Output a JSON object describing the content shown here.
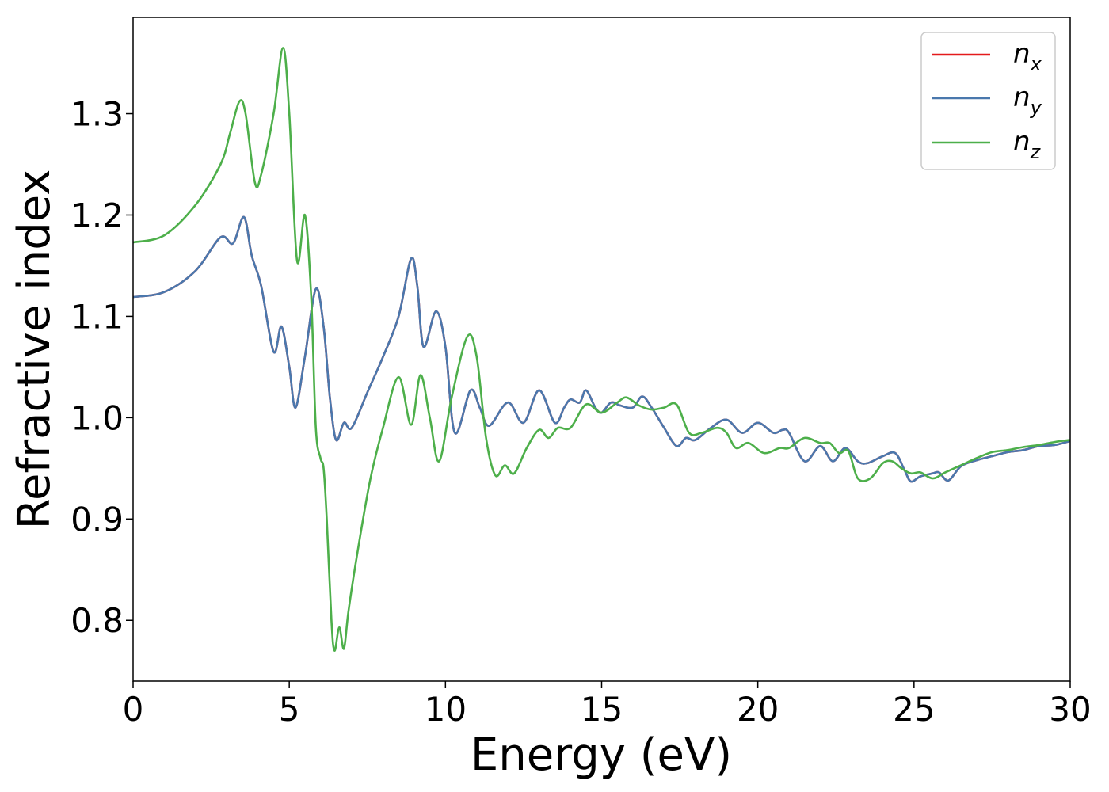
{
  "chart_data": {
    "type": "line",
    "xlabel": "Energy (eV)",
    "ylabel": "Refractive index",
    "xlim": [
      0,
      30
    ],
    "ylim": [
      0.74,
      1.395
    ],
    "xticks": [
      0,
      5,
      10,
      15,
      20,
      25,
      30
    ],
    "yticks": [
      0.8,
      0.9,
      1.0,
      1.1,
      1.2,
      1.3
    ],
    "xtick_labels": [
      "0",
      "5",
      "10",
      "15",
      "20",
      "25",
      "30"
    ],
    "ytick_labels": [
      "0.8",
      "0.9",
      "1.0",
      "1.1",
      "1.2",
      "1.3"
    ],
    "grid": false,
    "legend_position": "top-right",
    "series": [
      {
        "name": "n",
        "sub": "x",
        "color": "#e41a1c",
        "points": [
          [
            0,
            1.119
          ],
          [
            1,
            1.124
          ],
          [
            2,
            1.145
          ],
          [
            2.8,
            1.178
          ],
          [
            3.2,
            1.172
          ],
          [
            3.55,
            1.198
          ],
          [
            3.8,
            1.16
          ],
          [
            4.1,
            1.13
          ],
          [
            4.5,
            1.065
          ],
          [
            4.75,
            1.09
          ],
          [
            5.0,
            1.05
          ],
          [
            5.2,
            1.01
          ],
          [
            5.5,
            1.06
          ],
          [
            5.85,
            1.127
          ],
          [
            6.1,
            1.09
          ],
          [
            6.3,
            1.02
          ],
          [
            6.5,
            0.978
          ],
          [
            6.75,
            0.995
          ],
          [
            7.0,
            0.99
          ],
          [
            7.5,
            1.025
          ],
          [
            8.0,
            1.06
          ],
          [
            8.5,
            1.1
          ],
          [
            8.9,
            1.157
          ],
          [
            9.1,
            1.13
          ],
          [
            9.3,
            1.07
          ],
          [
            9.7,
            1.105
          ],
          [
            10.0,
            1.07
          ],
          [
            10.3,
            0.985
          ],
          [
            10.8,
            1.027
          ],
          [
            11.1,
            1.01
          ],
          [
            11.4,
            0.992
          ],
          [
            12.0,
            1.015
          ],
          [
            12.5,
            0.995
          ],
          [
            13.0,
            1.027
          ],
          [
            13.5,
            0.995
          ],
          [
            13.8,
            1.01
          ],
          [
            14.0,
            1.018
          ],
          [
            14.3,
            1.015
          ],
          [
            14.5,
            1.027
          ],
          [
            14.8,
            1.01
          ],
          [
            15.0,
            1.005
          ],
          [
            15.3,
            1.015
          ],
          [
            15.6,
            1.012
          ],
          [
            16.0,
            1.01
          ],
          [
            16.3,
            1.021
          ],
          [
            16.6,
            1.01
          ],
          [
            17.0,
            0.99
          ],
          [
            17.4,
            0.972
          ],
          [
            17.7,
            0.98
          ],
          [
            18.0,
            0.978
          ],
          [
            18.5,
            0.99
          ],
          [
            19.0,
            0.998
          ],
          [
            19.5,
            0.985
          ],
          [
            20.0,
            0.995
          ],
          [
            20.5,
            0.985
          ],
          [
            20.8,
            0.988
          ],
          [
            21.0,
            0.985
          ],
          [
            21.5,
            0.957
          ],
          [
            22.0,
            0.972
          ],
          [
            22.4,
            0.957
          ],
          [
            22.8,
            0.97
          ],
          [
            23.2,
            0.957
          ],
          [
            23.5,
            0.955
          ],
          [
            24.0,
            0.962
          ],
          [
            24.4,
            0.965
          ],
          [
            24.7,
            0.948
          ],
          [
            24.9,
            0.937
          ],
          [
            25.2,
            0.942
          ],
          [
            25.6,
            0.945
          ],
          [
            25.8,
            0.946
          ],
          [
            26.1,
            0.938
          ],
          [
            26.5,
            0.952
          ],
          [
            27.0,
            0.958
          ],
          [
            27.5,
            0.962
          ],
          [
            28.0,
            0.966
          ],
          [
            28.5,
            0.968
          ],
          [
            29.0,
            0.972
          ],
          [
            29.5,
            0.973
          ],
          [
            30,
            0.977
          ]
        ]
      },
      {
        "name": "n",
        "sub": "y",
        "color": "#4a78ad",
        "points": [
          [
            0,
            1.119
          ],
          [
            1,
            1.124
          ],
          [
            2,
            1.145
          ],
          [
            2.8,
            1.178
          ],
          [
            3.2,
            1.172
          ],
          [
            3.55,
            1.198
          ],
          [
            3.8,
            1.16
          ],
          [
            4.1,
            1.13
          ],
          [
            4.5,
            1.065
          ],
          [
            4.75,
            1.09
          ],
          [
            5.0,
            1.05
          ],
          [
            5.2,
            1.01
          ],
          [
            5.5,
            1.06
          ],
          [
            5.85,
            1.127
          ],
          [
            6.1,
            1.09
          ],
          [
            6.3,
            1.02
          ],
          [
            6.5,
            0.978
          ],
          [
            6.75,
            0.995
          ],
          [
            7.0,
            0.99
          ],
          [
            7.5,
            1.025
          ],
          [
            8.0,
            1.06
          ],
          [
            8.5,
            1.1
          ],
          [
            8.9,
            1.157
          ],
          [
            9.1,
            1.13
          ],
          [
            9.3,
            1.07
          ],
          [
            9.7,
            1.105
          ],
          [
            10.0,
            1.07
          ],
          [
            10.3,
            0.985
          ],
          [
            10.8,
            1.027
          ],
          [
            11.1,
            1.01
          ],
          [
            11.4,
            0.992
          ],
          [
            12.0,
            1.015
          ],
          [
            12.5,
            0.995
          ],
          [
            13.0,
            1.027
          ],
          [
            13.5,
            0.995
          ],
          [
            13.8,
            1.01
          ],
          [
            14.0,
            1.018
          ],
          [
            14.3,
            1.015
          ],
          [
            14.5,
            1.027
          ],
          [
            14.8,
            1.01
          ],
          [
            15.0,
            1.005
          ],
          [
            15.3,
            1.015
          ],
          [
            15.6,
            1.012
          ],
          [
            16.0,
            1.01
          ],
          [
            16.3,
            1.021
          ],
          [
            16.6,
            1.01
          ],
          [
            17.0,
            0.99
          ],
          [
            17.4,
            0.972
          ],
          [
            17.7,
            0.98
          ],
          [
            18.0,
            0.978
          ],
          [
            18.5,
            0.99
          ],
          [
            19.0,
            0.998
          ],
          [
            19.5,
            0.985
          ],
          [
            20.0,
            0.995
          ],
          [
            20.5,
            0.985
          ],
          [
            20.8,
            0.988
          ],
          [
            21.0,
            0.985
          ],
          [
            21.5,
            0.957
          ],
          [
            22.0,
            0.972
          ],
          [
            22.4,
            0.957
          ],
          [
            22.8,
            0.97
          ],
          [
            23.2,
            0.957
          ],
          [
            23.5,
            0.955
          ],
          [
            24.0,
            0.962
          ],
          [
            24.4,
            0.965
          ],
          [
            24.7,
            0.948
          ],
          [
            24.9,
            0.937
          ],
          [
            25.2,
            0.942
          ],
          [
            25.6,
            0.945
          ],
          [
            25.8,
            0.946
          ],
          [
            26.1,
            0.938
          ],
          [
            26.5,
            0.952
          ],
          [
            27.0,
            0.958
          ],
          [
            27.5,
            0.962
          ],
          [
            28.0,
            0.966
          ],
          [
            28.5,
            0.968
          ],
          [
            29.0,
            0.972
          ],
          [
            29.5,
            0.973
          ],
          [
            30,
            0.977
          ]
        ]
      },
      {
        "name": "n",
        "sub": "z",
        "color": "#4daf4a",
        "points": [
          [
            0,
            1.173
          ],
          [
            1,
            1.18
          ],
          [
            2,
            1.21
          ],
          [
            2.8,
            1.25
          ],
          [
            3.1,
            1.28
          ],
          [
            3.4,
            1.312
          ],
          [
            3.6,
            1.3
          ],
          [
            3.9,
            1.232
          ],
          [
            4.1,
            1.24
          ],
          [
            4.5,
            1.3
          ],
          [
            4.8,
            1.365
          ],
          [
            5.0,
            1.3
          ],
          [
            5.25,
            1.155
          ],
          [
            5.5,
            1.2
          ],
          [
            5.7,
            1.12
          ],
          [
            5.85,
            0.99
          ],
          [
            6.0,
            0.96
          ],
          [
            6.1,
            0.95
          ],
          [
            6.2,
            0.9
          ],
          [
            6.35,
            0.8
          ],
          [
            6.45,
            0.77
          ],
          [
            6.6,
            0.793
          ],
          [
            6.75,
            0.772
          ],
          [
            6.9,
            0.81
          ],
          [
            7.2,
            0.87
          ],
          [
            7.6,
            0.94
          ],
          [
            8.0,
            0.99
          ],
          [
            8.5,
            1.04
          ],
          [
            8.9,
            0.993
          ],
          [
            9.2,
            1.042
          ],
          [
            9.5,
            1.0
          ],
          [
            9.8,
            0.957
          ],
          [
            10.2,
            1.02
          ],
          [
            10.7,
            1.08
          ],
          [
            11.0,
            1.06
          ],
          [
            11.3,
            0.98
          ],
          [
            11.6,
            0.943
          ],
          [
            11.9,
            0.953
          ],
          [
            12.2,
            0.945
          ],
          [
            12.6,
            0.97
          ],
          [
            13.0,
            0.988
          ],
          [
            13.3,
            0.98
          ],
          [
            13.6,
            0.99
          ],
          [
            14.0,
            0.99
          ],
          [
            14.5,
            1.013
          ],
          [
            15.0,
            1.005
          ],
          [
            15.5,
            1.015
          ],
          [
            15.8,
            1.02
          ],
          [
            16.2,
            1.012
          ],
          [
            16.6,
            1.008
          ],
          [
            17.0,
            1.01
          ],
          [
            17.4,
            1.013
          ],
          [
            17.8,
            0.985
          ],
          [
            18.2,
            0.985
          ],
          [
            18.7,
            0.99
          ],
          [
            19.0,
            0.985
          ],
          [
            19.3,
            0.97
          ],
          [
            19.7,
            0.975
          ],
          [
            20.2,
            0.965
          ],
          [
            20.7,
            0.97
          ],
          [
            21.0,
            0.97
          ],
          [
            21.5,
            0.98
          ],
          [
            22.0,
            0.975
          ],
          [
            22.3,
            0.975
          ],
          [
            22.6,
            0.965
          ],
          [
            22.9,
            0.967
          ],
          [
            23.2,
            0.94
          ],
          [
            23.6,
            0.94
          ],
          [
            24.0,
            0.955
          ],
          [
            24.3,
            0.957
          ],
          [
            24.6,
            0.95
          ],
          [
            24.9,
            0.945
          ],
          [
            25.2,
            0.946
          ],
          [
            25.6,
            0.94
          ],
          [
            26.0,
            0.946
          ],
          [
            26.5,
            0.953
          ],
          [
            27.0,
            0.96
          ],
          [
            27.5,
            0.966
          ],
          [
            28.0,
            0.968
          ],
          [
            28.5,
            0.971
          ],
          [
            29.0,
            0.973
          ],
          [
            29.5,
            0.976
          ],
          [
            30,
            0.978
          ]
        ]
      }
    ]
  }
}
